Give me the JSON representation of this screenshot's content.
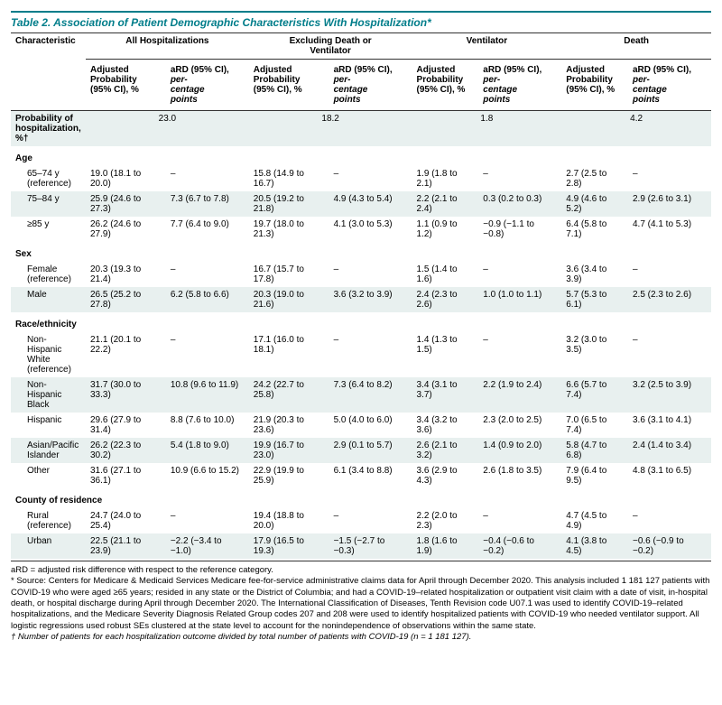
{
  "title": "Table 2. Association of Patient Demographic Characteristics With Hospitalization*",
  "header": {
    "characteristic": "Characteristic",
    "outcomes": [
      "All Hospitalizations",
      "Excluding Death or Ventilator",
      "Ventilator",
      "Death"
    ],
    "sub_adj": "Adjusted Probability (95% CI), %",
    "sub_ard": "aRD (95% CI), percentage points"
  },
  "prob_label": "Probability of hospitalization, %†",
  "prob_values": [
    "23.0",
    "18.2",
    "1.8",
    "4.2"
  ],
  "sections": [
    {
      "name": "Age",
      "rows": [
        {
          "label": "65–74 y (reference)",
          "cells": [
            "19.0 (18.1 to 20.0)",
            "–",
            "15.8 (14.9 to 16.7)",
            "–",
            "1.9 (1.8 to 2.1)",
            "–",
            "2.7 (2.5 to 2.8)",
            "–"
          ]
        },
        {
          "label": "75–84 y",
          "cells": [
            "25.9 (24.6 to 27.3)",
            "7.3 (6.7 to 7.8)",
            "20.5 (19.2 to 21.8)",
            "4.9 (4.3 to 5.4)",
            "2.2 (2.1 to 2.4)",
            "0.3 (0.2 to 0.3)",
            "4.9 (4.6 to 5.2)",
            "2.9 (2.6 to 3.1)"
          ]
        },
        {
          "label": "≥85 y",
          "cells": [
            "26.2 (24.6 to 27.9)",
            "7.7 (6.4 to 9.0)",
            "19.7 (18.0 to 21.3)",
            "4.1 (3.0 to 5.3)",
            "1.1 (0.9 to 1.2)",
            "−0.9 (−1.1 to −0.8)",
            "6.4 (5.8 to 7.1)",
            "4.7 (4.1 to 5.3)"
          ]
        }
      ]
    },
    {
      "name": "Sex",
      "rows": [
        {
          "label": "Female (reference)",
          "cells": [
            "20.3 (19.3 to 21.4)",
            "–",
            "16.7 (15.7 to 17.8)",
            "–",
            "1.5 (1.4 to 1.6)",
            "–",
            "3.6 (3.4 to 3.9)",
            "–"
          ]
        },
        {
          "label": "Male",
          "cells": [
            "26.5 (25.2 to 27.8)",
            "6.2 (5.8 to 6.6)",
            "20.3 (19.0 to 21.6)",
            "3.6 (3.2 to 3.9)",
            "2.4 (2.3 to 2.6)",
            "1.0 (1.0 to 1.1)",
            "5.7 (5.3 to 6.1)",
            "2.5 (2.3 to 2.6)"
          ]
        }
      ]
    },
    {
      "name": "Race/ethnicity",
      "rows": [
        {
          "label": "Non-Hispanic White (reference)",
          "cells": [
            "21.1 (20.1 to 22.2)",
            "–",
            "17.1 (16.0 to 18.1)",
            "–",
            "1.4 (1.3 to 1.5)",
            "–",
            "3.2 (3.0 to 3.5)",
            "–"
          ]
        },
        {
          "label": "Non-Hispanic Black",
          "cells": [
            "31.7 (30.0 to 33.3)",
            "10.8 (9.6 to 11.9)",
            "24.2 (22.7 to 25.8)",
            "7.3 (6.4 to 8.2)",
            "3.4 (3.1 to 3.7)",
            "2.2 (1.9 to 2.4)",
            "6.6 (5.7 to 7.4)",
            "3.2 (2.5 to 3.9)"
          ]
        },
        {
          "label": "Hispanic",
          "cells": [
            "29.6 (27.9 to 31.4)",
            "8.8 (7.6 to 10.0)",
            "21.9 (20.3 to 23.6)",
            "5.0 (4.0 to 6.0)",
            "3.4 (3.2 to 3.6)",
            "2.3 (2.0 to 2.5)",
            "7.0 (6.5 to 7.4)",
            "3.6 (3.1 to 4.1)"
          ]
        },
        {
          "label": "Asian/Pacific Islander",
          "cells": [
            "26.2 (22.3 to 30.2)",
            "5.4 (1.8 to 9.0)",
            "19.9 (16.7 to 23.0)",
            "2.9 (0.1 to 5.7)",
            "2.6 (2.1 to 3.2)",
            "1.4 (0.9 to 2.0)",
            "5.8 (4.7 to 6.8)",
            "2.4 (1.4 to 3.4)"
          ]
        },
        {
          "label": "Other",
          "cells": [
            "31.6 (27.1 to 36.1)",
            "10.9 (6.6 to 15.2)",
            "22.9 (19.9 to 25.9)",
            "6.1 (3.4 to 8.8)",
            "3.6 (2.9 to 4.3)",
            "2.6 (1.8 to 3.5)",
            "7.9 (6.4 to 9.5)",
            "4.8 (3.1 to 6.5)"
          ]
        }
      ]
    },
    {
      "name": "County of residence",
      "rows": [
        {
          "label": "Rural (reference)",
          "cells": [
            "24.7 (24.0 to 25.4)",
            "–",
            "19.4 (18.8 to 20.0)",
            "–",
            "2.2 (2.0 to 2.3)",
            "–",
            "4.7 (4.5 to 4.9)",
            "–"
          ]
        },
        {
          "label": "Urban",
          "cells": [
            "22.5 (21.1 to 23.9)",
            "−2.2 (−3.4 to −1.0)",
            "17.9 (16.5 to 19.3)",
            "−1.5 (−2.7 to −0.3)",
            "1.8 (1.6 to 1.9)",
            "−0.4 (−0.6 to −0.2)",
            "4.1 (3.8 to 4.5)",
            "−0.6 (−0.9 to −0.2)"
          ]
        }
      ]
    }
  ],
  "footnotes": {
    "def": "aRD = adjusted risk difference with respect to the reference category.",
    "star": "* Source: Centers for Medicare & Medicaid Services Medicare fee-for-service administrative claims data for April through December 2020. This analysis included 1 181 127 patients with COVID-19 who were aged ≥65 years; resided in any state or the District of Columbia; and had a COVID-19–related hospitalization or outpatient visit claim with a date of visit, in-hospital death, or hospital discharge during April through December 2020. The International Classification of Diseases, Tenth Revision code U07.1 was used to identify COVID-19–related hospitalizations, and the Medicare Severity Diagnosis Related Group codes 207 and 208 were used to identify hospitalized patients with COVID-19 who needed ventilator support. All logistic regressions used robust SEs clustered at the state level to account for the nonindependence of observations within the same state.",
    "dagger": "† Number of patients for each hospitalization outcome divided by total number of patients with COVID-19 (n = 1 181 127)."
  },
  "colors": {
    "accent": "#007d8a",
    "alt_row": "#e8f0ef"
  }
}
